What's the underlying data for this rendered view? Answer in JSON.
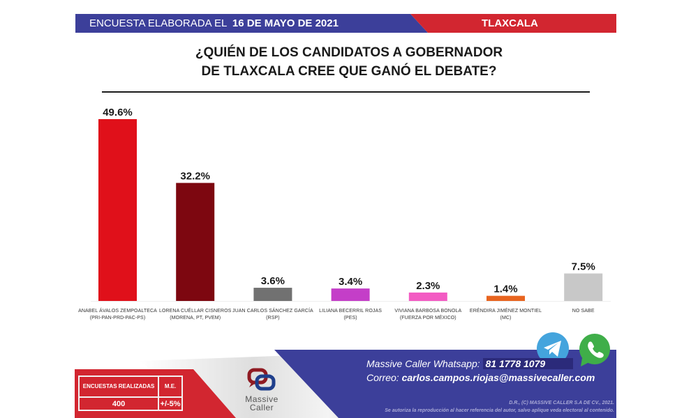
{
  "header": {
    "prefix": "ENCUESTA ELABORADA EL",
    "date": "16 DE MAYO DE 2021",
    "state": "TLAXCALA",
    "colors": {
      "left": "#3c3f9a",
      "right": "#d22630"
    }
  },
  "title": {
    "line1": "¿QUIÉN DE LOS CANDIDATOS A GOBERNADOR",
    "line2": "DE TLAXCALA CREE QUE GANÓ EL DEBATE?"
  },
  "chart_data": {
    "type": "bar",
    "title": "¿QUIÉN DE LOS CANDIDATOS A GOBERNADOR DE TLAXCALA CREE QUE GANÓ EL DEBATE?",
    "xlabel": "",
    "ylabel": "",
    "ylim": [
      0,
      50
    ],
    "grid": false,
    "unit": "%",
    "categories": [
      {
        "name": "ANABEL ÁVALOS ZEMPOALTECA",
        "party": "(PRI-PAN-PRD-PAC-PS)"
      },
      {
        "name": "LORENA CUÉLLAR CISNEROS",
        "party": "(MORENA, PT, PVEM)"
      },
      {
        "name": "JUAN CARLOS SÁNCHEZ GARCÍA",
        "party": "(RSP)"
      },
      {
        "name": "LILIANA BECERRIL ROJAS",
        "party": "(PES)"
      },
      {
        "name": "VIVIANA BARBOSA BONOLA",
        "party": "(FUERZA POR MÉXICO)"
      },
      {
        "name": "ERÉNDIRA JIMÉNEZ MONTIEL",
        "party": "(MC)"
      },
      {
        "name": "NO SABE",
        "party": ""
      }
    ],
    "values": [
      49.6,
      32.2,
      3.6,
      3.4,
      2.3,
      1.4,
      7.5
    ],
    "value_labels": [
      "49.6%",
      "32.2%",
      "3.6%",
      "3.4%",
      "2.3%",
      "1.4%",
      "7.5%"
    ],
    "colors": [
      "#e0101a",
      "#7d0710",
      "#717171",
      "#c43ec8",
      "#f35bc3",
      "#e8641f",
      "#c8c8c8"
    ]
  },
  "footer": {
    "stats": {
      "surveys_label": "ENCUESTAS REALIZADAS",
      "surveys_value": "400",
      "me_label": "M.E.",
      "me_value": "+/-5%"
    },
    "logo": {
      "line1": "Massive",
      "line2": "Caller"
    },
    "contact": {
      "whatsapp_label": "Massive Caller Whatsapp:",
      "whatsapp_number": "81 1778 1079",
      "email_label": "Correo:",
      "email": "carlos.campos.riojas@massivecaller.com"
    },
    "copyright_line1": "D.R., (C) MASSIVE CALLER S.A DE CV., 2021.",
    "copyright_line2": "Se autoriza la reproducción al hacer referencia del autor, salvo aplique veda electoral al contenido.",
    "icons": [
      "telegram-icon",
      "whatsapp-icon"
    ],
    "colors": {
      "red": "#d22630",
      "blue": "#3c3f9a"
    }
  }
}
